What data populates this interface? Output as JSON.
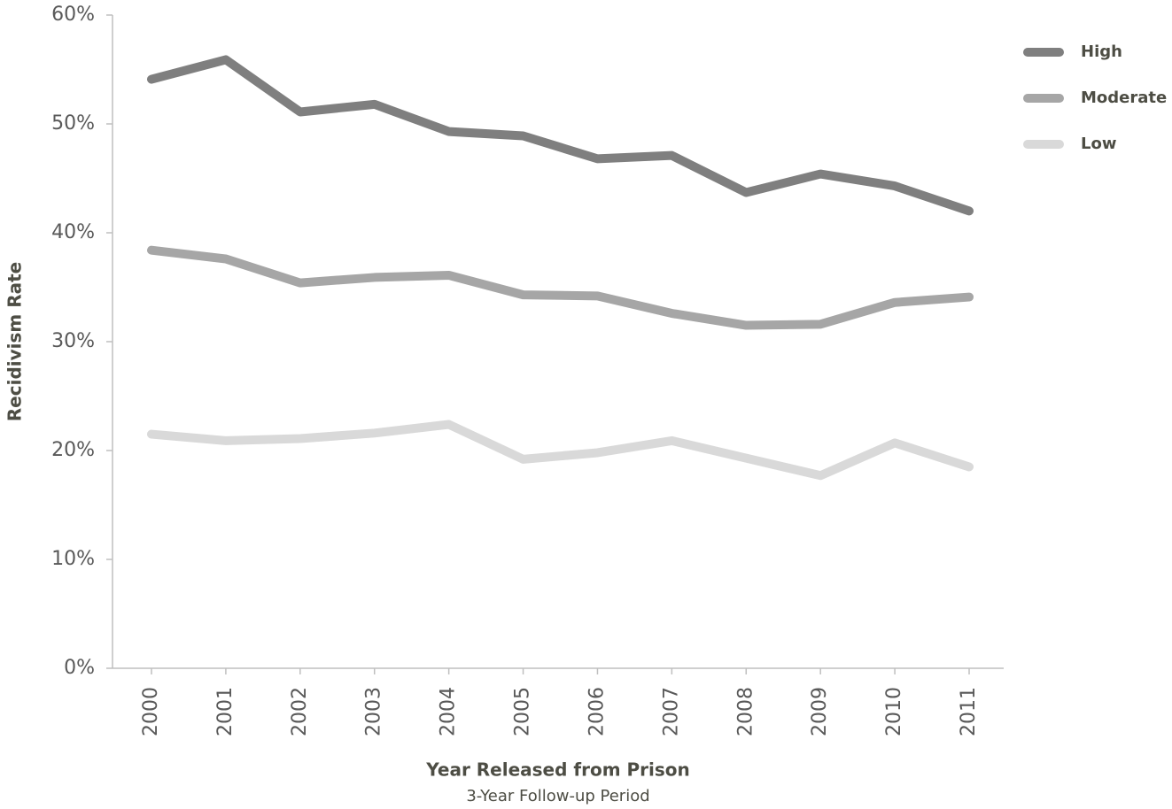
{
  "chart_data": {
    "type": "line",
    "x_label": "Year Released from Prison",
    "x_sublabel": "3-Year Follow-up Period",
    "y_label": "Recidivism Rate",
    "categories": [
      "2000",
      "2001",
      "2002",
      "2003",
      "2004",
      "2005",
      "2006",
      "2007",
      "2008",
      "2009",
      "2010",
      "2011"
    ],
    "series": [
      {
        "name": "High",
        "color": "#7f7f7f",
        "values": [
          54.1,
          55.9,
          51.1,
          51.8,
          49.3,
          48.9,
          46.8,
          47.1,
          43.7,
          45.4,
          44.3,
          42.0
        ]
      },
      {
        "name": "Moderate",
        "color": "#a6a6a6",
        "values": [
          38.4,
          37.6,
          35.4,
          35.9,
          36.1,
          34.3,
          34.2,
          32.6,
          31.5,
          31.6,
          33.6,
          34.1
        ]
      },
      {
        "name": "Low",
        "color": "#d9d9d9",
        "values": [
          21.5,
          20.9,
          21.1,
          21.6,
          22.4,
          19.2,
          19.8,
          20.9,
          19.3,
          17.7,
          20.7,
          18.5
        ]
      }
    ],
    "ylim": [
      0,
      60
    ],
    "yticks": [
      {
        "value": 0,
        "label": "0%"
      },
      {
        "value": 10,
        "label": "10%"
      },
      {
        "value": 20,
        "label": "20%"
      },
      {
        "value": 30,
        "label": "30%"
      },
      {
        "value": 40,
        "label": "40%"
      },
      {
        "value": 50,
        "label": "50%"
      },
      {
        "value": 60,
        "label": "60%"
      }
    ],
    "grid": false,
    "legend": "right"
  }
}
